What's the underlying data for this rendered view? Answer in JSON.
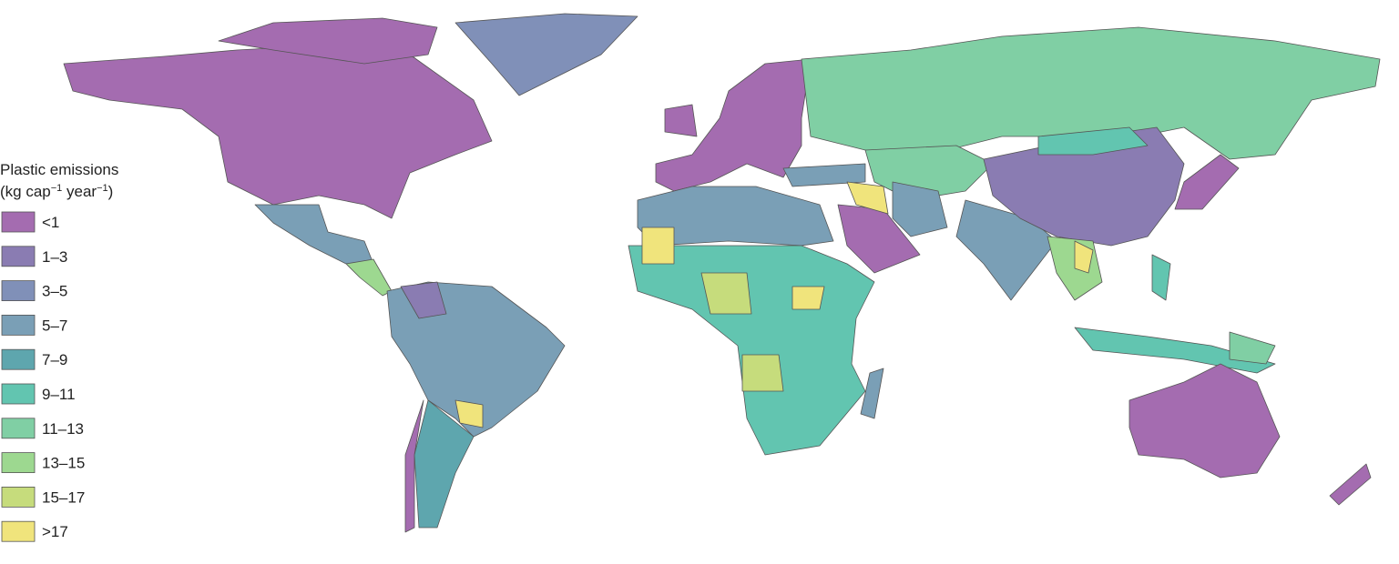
{
  "legend": {
    "title": "Plastic emissions",
    "unit": [
      "(kg cap",
      "−1",
      " year",
      "−1",
      ")"
    ],
    "items": [
      {
        "label": "<1",
        "color": "#a46cb0"
      },
      {
        "label": "1–3",
        "color": "#8a7cb2"
      },
      {
        "label": "3–5",
        "color": "#8090b8"
      },
      {
        "label": "5–7",
        "color": "#7a9fb6"
      },
      {
        "label": "7–9",
        "color": "#5ea6ae"
      },
      {
        "label": "9–11",
        "color": "#62c5b0"
      },
      {
        "label": "11–13",
        "color": "#80cfa4"
      },
      {
        "label": "13–15",
        "color": "#9dd890"
      },
      {
        "label": "15–17",
        "color": "#c6dc7c"
      },
      {
        "label": ">17",
        "color": "#f0e47c"
      }
    ]
  }
}
